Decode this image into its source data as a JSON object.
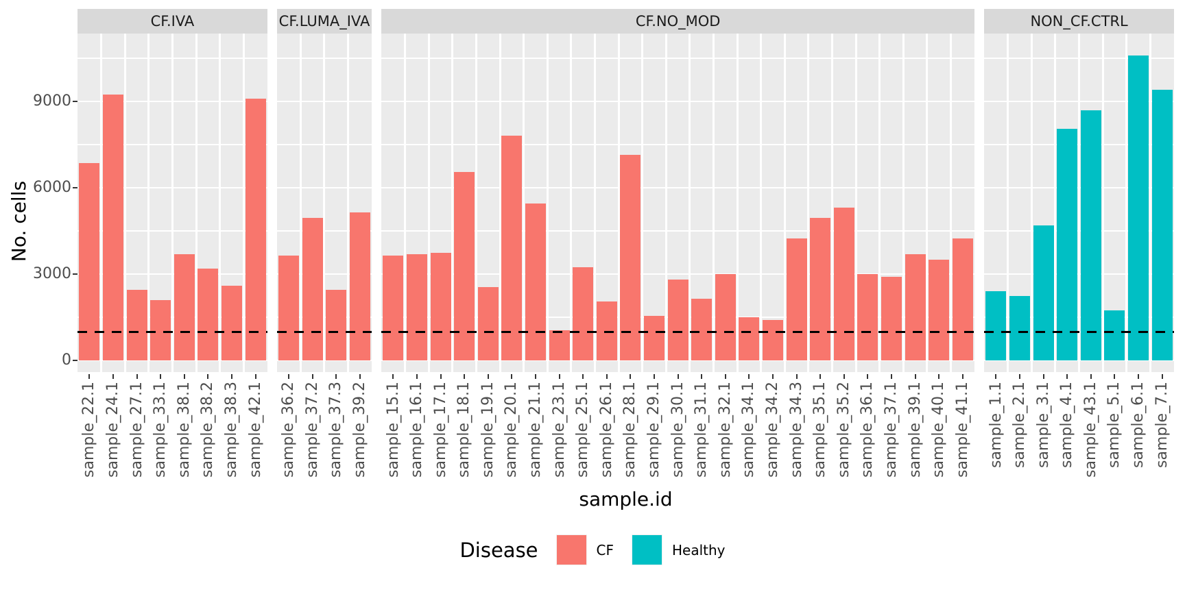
{
  "chart_data": {
    "type": "bar",
    "title": "",
    "xlabel": "sample.id",
    "ylabel": "No. cells",
    "y_ticks": [
      0,
      3000,
      6000,
      9000
    ],
    "y_minor_ticks": [
      1500,
      4500,
      7500,
      10500
    ],
    "ylim": [
      0,
      11300
    ],
    "grid": true,
    "panel_background": "#EBEBEB",
    "strip_background": "#D9D9D9",
    "gridline_color": "#ffffff",
    "hline": {
      "value": 1000,
      "style": "dashed",
      "color": "#000000"
    },
    "legend": {
      "title": "Disease",
      "position": "bottom",
      "entries": [
        {
          "label": "CF",
          "color": "#F8766D"
        },
        {
          "label": "Healthy",
          "color": "#00BFC4"
        }
      ]
    },
    "facets": [
      {
        "label": "CF.IVA",
        "group": "CF",
        "color": "#F8766D",
        "categories": [
          "sample_22.1",
          "sample_24.1",
          "sample_27.1",
          "sample_33.1",
          "sample_38.1",
          "sample_38.2",
          "sample_38.3",
          "sample_42.1"
        ],
        "values": [
          6850,
          9250,
          2450,
          2100,
          3700,
          3200,
          2600,
          9100
        ]
      },
      {
        "label": "CF.LUMA_IVA",
        "group": "CF",
        "color": "#F8766D",
        "categories": [
          "sample_36.2",
          "sample_37.2",
          "sample_37.3",
          "sample_39.2"
        ],
        "values": [
          3650,
          4950,
          2450,
          5150
        ]
      },
      {
        "label": "CF.NO_MOD",
        "group": "CF",
        "color": "#F8766D",
        "categories": [
          "sample_15.1",
          "sample_16.1",
          "sample_17.1",
          "sample_18.1",
          "sample_19.1",
          "sample_20.1",
          "sample_21.1",
          "sample_23.1",
          "sample_25.1",
          "sample_26.1",
          "sample_28.1",
          "sample_29.1",
          "sample_30.1",
          "sample_31.1",
          "sample_32.1",
          "sample_34.1",
          "sample_34.2",
          "sample_34.3",
          "sample_35.1",
          "sample_35.2",
          "sample_36.1",
          "sample_37.1",
          "sample_39.1",
          "sample_40.1",
          "sample_41.1"
        ],
        "values": [
          3650,
          3700,
          3750,
          6550,
          2550,
          7800,
          5450,
          1050,
          3250,
          2050,
          7150,
          1550,
          2800,
          2150,
          3000,
          1500,
          1400,
          4250,
          4950,
          5300,
          3000,
          2900,
          3700,
          3500,
          4250
        ]
      },
      {
        "label": "NON_CF.CTRL",
        "group": "Healthy",
        "color": "#00BFC4",
        "categories": [
          "sample_1.1",
          "sample_2.1",
          "sample_3.1",
          "sample_4.1",
          "sample_43.1",
          "sample_5.1",
          "sample_6.1",
          "sample_7.1"
        ],
        "values": [
          2400,
          2250,
          4700,
          8050,
          8700,
          1750,
          10600,
          9400
        ]
      }
    ]
  }
}
